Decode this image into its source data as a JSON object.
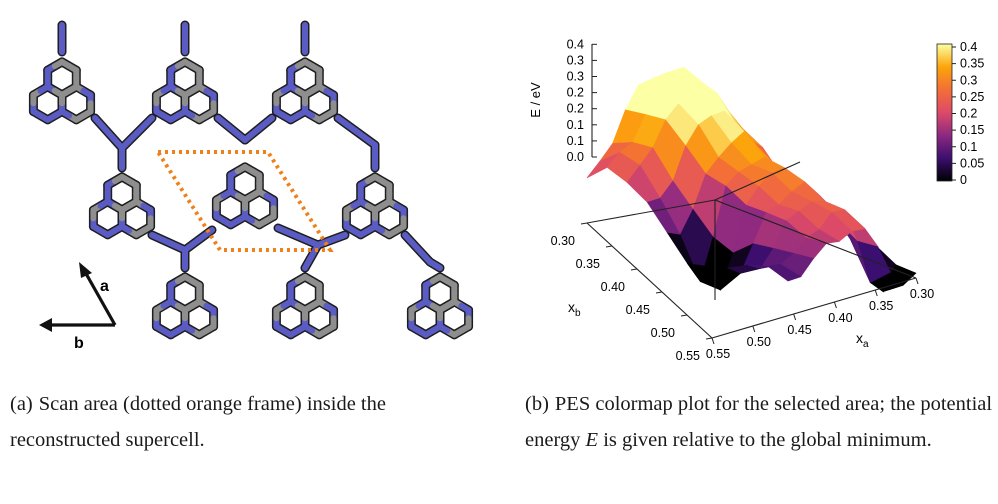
{
  "panel_a": {
    "lattice_vectors": [
      {
        "symbol": "a"
      },
      {
        "symbol": "b"
      }
    ],
    "colors": {
      "nitrogen": "#5a5cc4",
      "carbon": "#8e8e8e",
      "bond": "#1e1e1e",
      "frame": "#f08019"
    }
  },
  "panel_b": {
    "chart_data": {
      "type": "surface",
      "zlabel": "E / eV",
      "z_ticks": [
        "0.0",
        "0.1",
        "0.1",
        "0.2",
        "0.2",
        "0.3",
        "0.3",
        "0.4"
      ],
      "x_axis": {
        "label": "x",
        "subscript": "a",
        "ticks": [
          "0.30",
          "0.35",
          "0.40",
          "0.45",
          "0.50",
          "0.55"
        ]
      },
      "y_axis": {
        "label": "x",
        "subscript": "b",
        "ticks": [
          "0.30",
          "0.35",
          "0.40",
          "0.45",
          "0.50",
          "0.55"
        ]
      },
      "colorbar": {
        "ticks": [
          "0.4",
          "0.35",
          "0.3",
          "0.25",
          "0.2",
          "0.15",
          "0.1",
          "0.05",
          "0"
        ],
        "range": [
          0,
          0.4
        ],
        "colormap": [
          "#000000",
          "#3b0f6f",
          "#8c2981",
          "#dd4a68",
          "#f36e38",
          "#fca50a",
          "#fcffa4"
        ]
      }
    }
  },
  "captions": {
    "a": {
      "tag": "(a)",
      "text": "Scan area (dotted orange frame) inside the reconstructed supercell."
    },
    "b": {
      "tag": "(b)",
      "text_before": "PES colormap plot for the selected area; the potential energy",
      "var": "E",
      "text_after": "is given relative to the global minimum."
    }
  }
}
